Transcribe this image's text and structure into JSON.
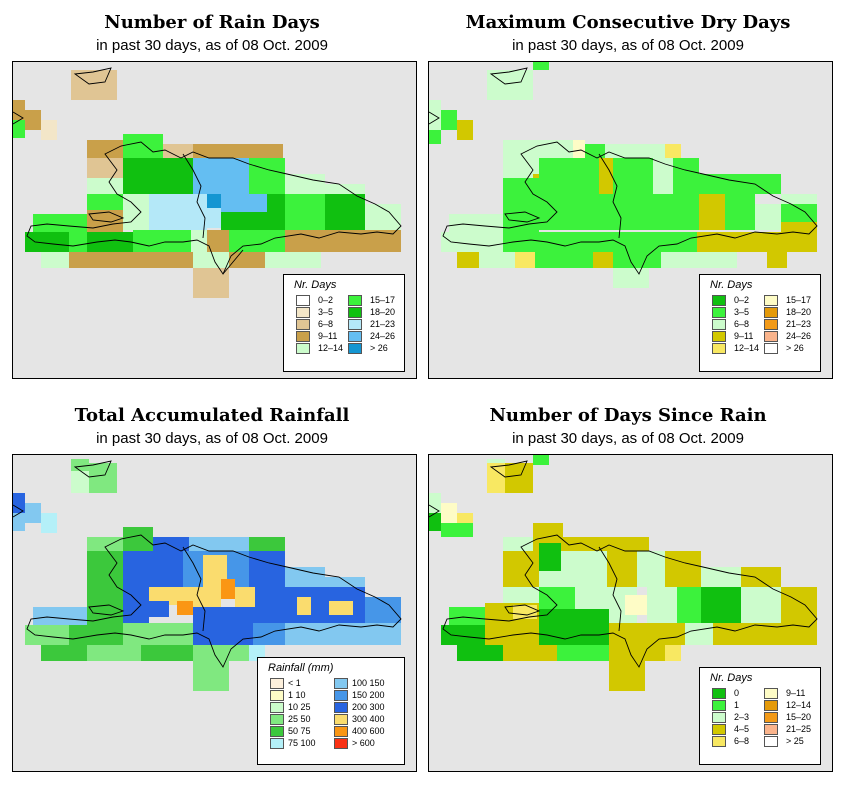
{
  "panels": [
    {
      "id": "rain-days",
      "title": "Number of Rain Days",
      "subtitle": "in past 30 days, as of  08 Oct. 2009",
      "legend": {
        "title": "Nr. Days",
        "left": [
          {
            "label": "0–2",
            "color": "#ffffff"
          },
          {
            "label": "3–5",
            "color": "#f3e6c8"
          },
          {
            "label": "6–8",
            "color": "#e0c594"
          },
          {
            "label": "9–11",
            "color": "#c9a04a"
          },
          {
            "label": "12–14",
            "color": "#ccfccc"
          }
        ],
        "right": [
          {
            "label": "15–17",
            "color": "#3cf23c"
          },
          {
            "label": "18–20",
            "color": "#10c010"
          },
          {
            "label": "21–23",
            "color": "#b4e8f8"
          },
          {
            "label": "24–26",
            "color": "#64bef2"
          },
          {
            "label": "> 26",
            "color": "#1496d2"
          }
        ]
      }
    },
    {
      "id": "max-dry-days",
      "title": "Maximum Consecutive Dry Days",
      "subtitle": "in past 30 days, as of  08 Oct. 2009",
      "legend": {
        "title": "Nr. Days",
        "left": [
          {
            "label": "0–2",
            "color": "#10c010"
          },
          {
            "label": "3–5",
            "color": "#3cf23c"
          },
          {
            "label": "6–8",
            "color": "#ccfccc"
          },
          {
            "label": "9–11",
            "color": "#d2c800"
          },
          {
            "label": "12–14",
            "color": "#f8e862"
          }
        ],
        "right": [
          {
            "label": "15–17",
            "color": "#fefcc6"
          },
          {
            "label": "18–20",
            "color": "#e49a0a"
          },
          {
            "label": "21–23",
            "color": "#f29a18"
          },
          {
            "label": "24–26",
            "color": "#fab48c"
          },
          {
            "label": "> 26",
            "color": "#ffffff"
          }
        ]
      }
    },
    {
      "id": "total-rainfall",
      "title": "Total Accumulated Rainfall",
      "subtitle": "in past 30 days, as of  08 Oct. 2009",
      "legend": {
        "title": "Rainfall (mm)",
        "left": [
          {
            "label": "< 1",
            "color": "#fdf0dc"
          },
          {
            "label": "1     10",
            "color": "#fefcc6"
          },
          {
            "label": "10     25",
            "color": "#ccfccc"
          },
          {
            "label": "25     50",
            "color": "#80e880"
          },
          {
            "label": "50     75",
            "color": "#3cc83c"
          },
          {
            "label": "75   100",
            "color": "#b4f0f8"
          }
        ],
        "right": [
          {
            "label": "100   150",
            "color": "#82c8f0"
          },
          {
            "label": "150   200",
            "color": "#4696e8"
          },
          {
            "label": "200   300",
            "color": "#2864e0"
          },
          {
            "label": "300   400",
            "color": "#fadc6e"
          },
          {
            "label": "400   600",
            "color": "#fa9614"
          },
          {
            "label": "> 600",
            "color": "#fa3214"
          }
        ]
      }
    },
    {
      "id": "days-since-rain",
      "title": "Number of Days Since Rain",
      "subtitle": "in past 30 days, as of  08 Oct. 2009",
      "legend": {
        "title": "Nr. Days",
        "left": [
          {
            "label": "0",
            "color": "#10c010"
          },
          {
            "label": "1",
            "color": "#3cf23c"
          },
          {
            "label": "2–3",
            "color": "#ccfccc"
          },
          {
            "label": "4–5",
            "color": "#d2c800"
          },
          {
            "label": "6–8",
            "color": "#f8e862"
          }
        ],
        "right": [
          {
            "label": "9–11",
            "color": "#fefcc6"
          },
          {
            "label": "12–14",
            "color": "#e49a0a"
          },
          {
            "label": "15–20",
            "color": "#f29a18"
          },
          {
            "label": "21–25",
            "color": "#fab48c"
          },
          {
            "label": "> 25",
            "color": "#ffffff"
          }
        ]
      }
    }
  ]
}
